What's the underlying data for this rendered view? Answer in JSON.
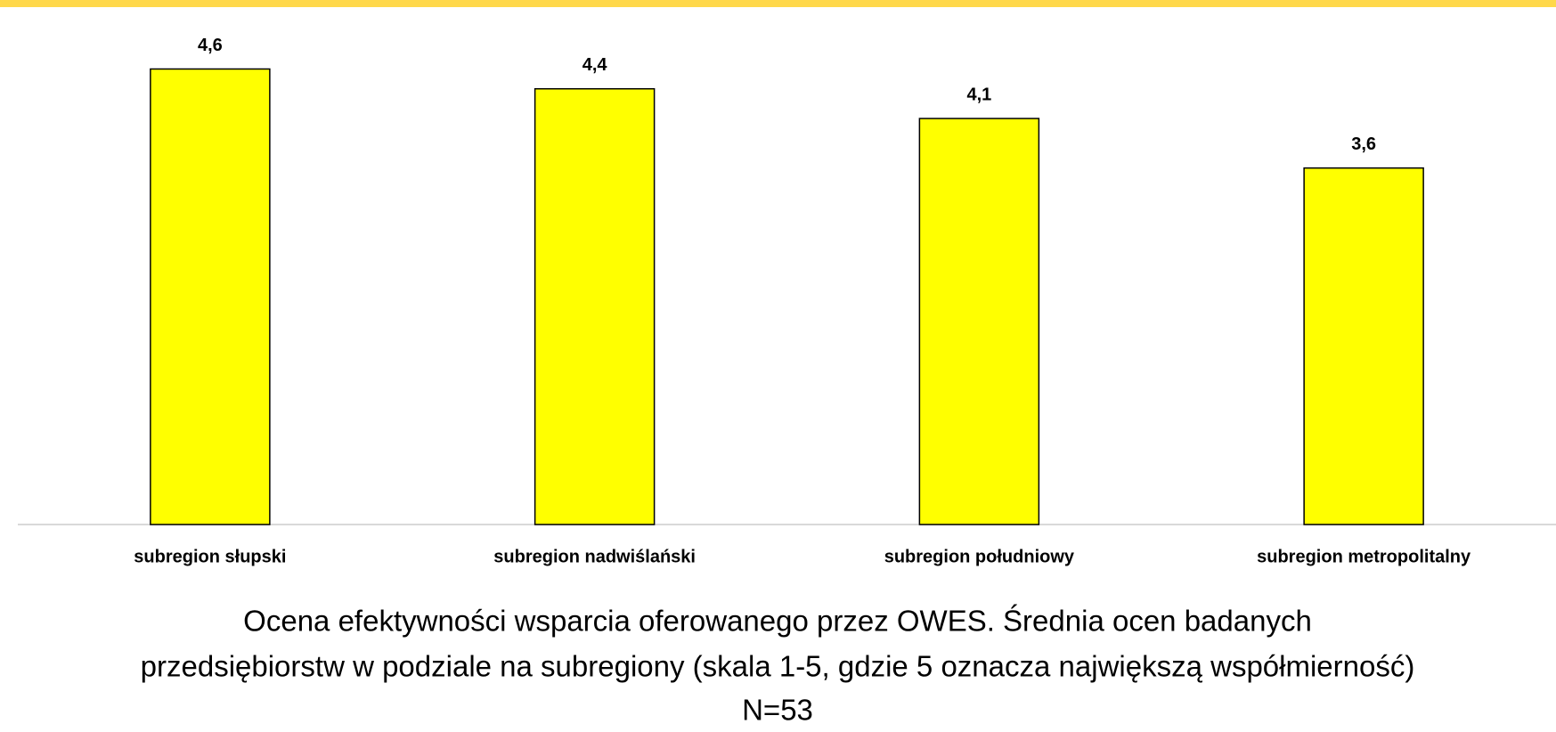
{
  "chart_data": {
    "type": "bar",
    "title": [
      "Ocena efektywności wsparcia oferowanego przez OWES. Średnia ocen badanych",
      "przedsiębiorstw w podziale na subregiony (skala 1-5, gdzie 5 oznacza największą współmierność)"
    ],
    "subtitle": "N=53",
    "categories": [
      "subregion słupski",
      "subregion nadwiślański",
      "subregion południowy",
      "subregion metropolitalny"
    ],
    "values": [
      4.6,
      4.4,
      4.1,
      3.6
    ],
    "value_labels": [
      "4,6",
      "4,4",
      "4,1",
      "3,6"
    ],
    "color": "#ffff00",
    "ylim": [
      0,
      5
    ]
  }
}
